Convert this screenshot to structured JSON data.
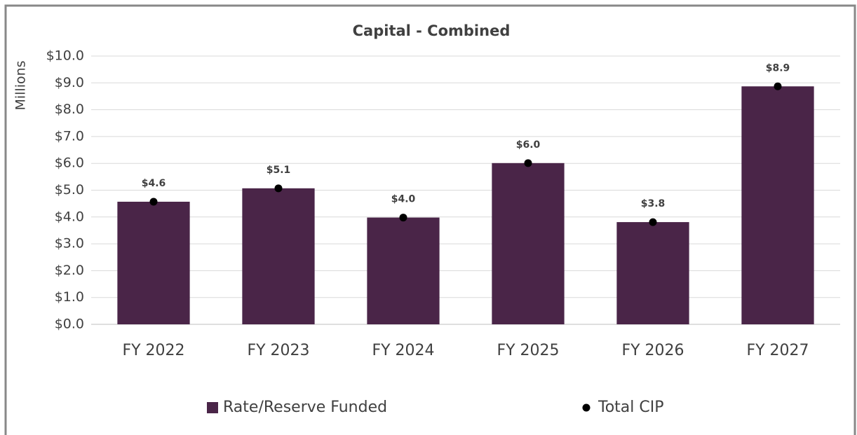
{
  "chart_data": {
    "type": "bar",
    "title": "Capital - Combined",
    "y_label": "Millions",
    "categories": [
      "FY 2022",
      "FY 2023",
      "FY 2024",
      "FY 2025",
      "FY 2026",
      "FY 2027"
    ],
    "series": [
      {
        "name": "Rate/Reserve Funded",
        "type": "bar",
        "color": "#4a2548",
        "values": [
          4.57,
          5.07,
          3.98,
          6.01,
          3.81,
          8.87
        ]
      },
      {
        "name": "Total CIP",
        "type": "scatter",
        "color": "#000000",
        "values": [
          4.57,
          5.07,
          3.98,
          6.01,
          3.81,
          8.87
        ],
        "value_labels": [
          "$4.6",
          "$5.1",
          "$4.0",
          "$6.0",
          "$3.8",
          "$8.9"
        ]
      }
    ],
    "ylim": [
      0,
      10
    ],
    "yticks": [
      {
        "value": 0,
        "label": "$0.0"
      },
      {
        "value": 1,
        "label": "$1.0"
      },
      {
        "value": 2,
        "label": "$2.0"
      },
      {
        "value": 3,
        "label": "$3.0"
      },
      {
        "value": 4,
        "label": "$4.0"
      },
      {
        "value": 5,
        "label": "$5.0"
      },
      {
        "value": 6,
        "label": "$6.0"
      },
      {
        "value": 7,
        "label": "$7.0"
      },
      {
        "value": 8,
        "label": "$8.0"
      },
      {
        "value": 9,
        "label": "$9.0"
      },
      {
        "value": 10,
        "label": "$10.0"
      }
    ],
    "grid": true,
    "legend": "bottom"
  }
}
